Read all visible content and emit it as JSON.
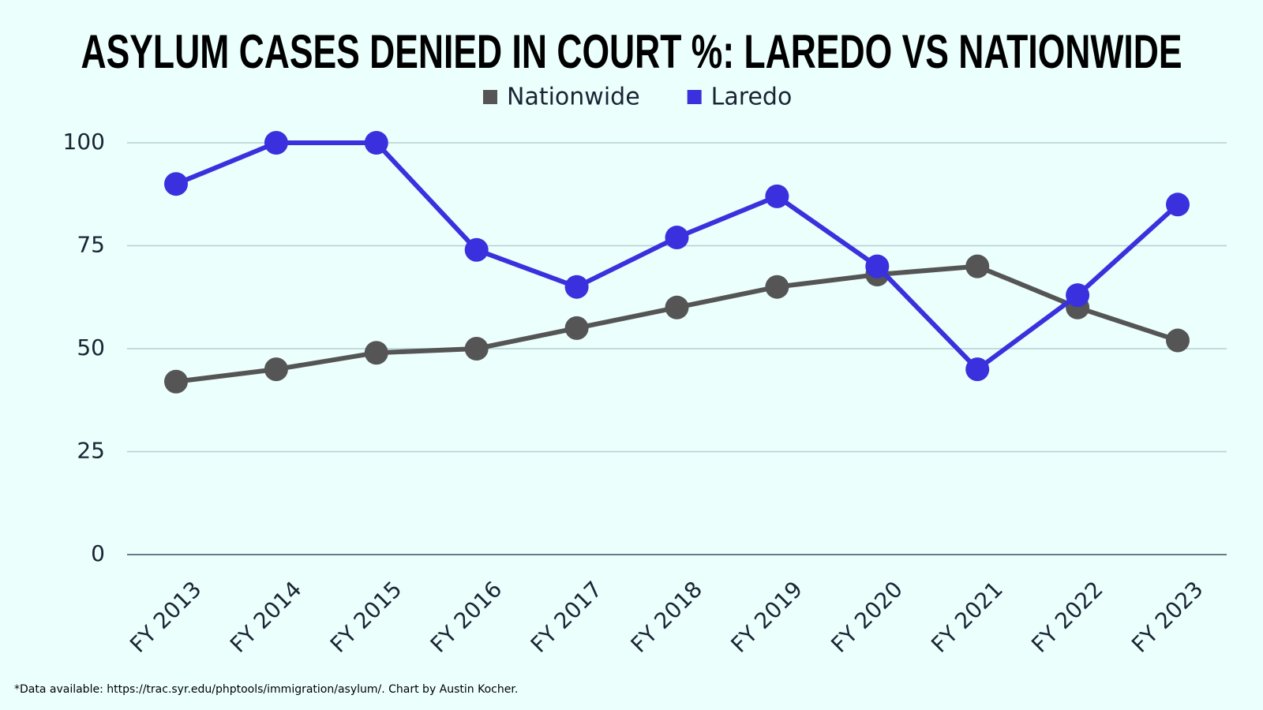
{
  "chart_data": {
    "type": "line",
    "title": "ASYLUM CASES DENIED IN COURT %: LAREDO VS NATIONWIDE",
    "categories": [
      "FY 2013",
      "FY 2014",
      "FY 2015",
      "FY 2016",
      "FY 2017",
      "FY 2018",
      "FY 2019",
      "FY 2020",
      "FY 2021",
      "FY 2022",
      "FY 2023"
    ],
    "series": [
      {
        "name": "Nationwide",
        "color": "#555555",
        "values": [
          42,
          45,
          49,
          50,
          55,
          60,
          65,
          68,
          70,
          60,
          52
        ]
      },
      {
        "name": "Laredo",
        "color": "#3b30dd",
        "values": [
          90,
          100,
          100,
          74,
          65,
          77,
          87,
          70,
          45,
          63,
          85
        ]
      }
    ],
    "ylim": [
      0,
      100
    ],
    "yticks": [
      0,
      25,
      50,
      75,
      100
    ],
    "grid": true,
    "note": "*Data available: https://trac.syr.edu/phptools/immigration/asylum/. Chart by Austin Kocher."
  }
}
